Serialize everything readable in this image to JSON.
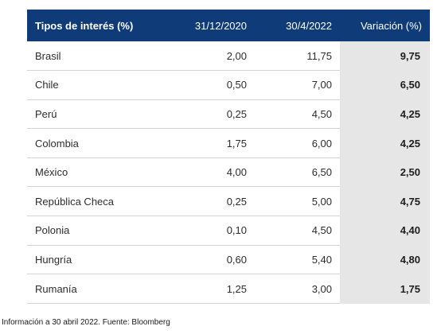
{
  "table": {
    "headers": [
      "Tipos de interés (%)",
      "31/12/2020",
      "30/4/2022",
      "Variación (%)"
    ],
    "rows": [
      {
        "country": "Brasil",
        "v2020": "2,00",
        "v2022": "11,75",
        "change": "9,75"
      },
      {
        "country": "Chile",
        "v2020": "0,50",
        "v2022": "7,00",
        "change": "6,50"
      },
      {
        "country": "Perú",
        "v2020": "0,25",
        "v2022": "4,50",
        "change": "4,25"
      },
      {
        "country": "Colombia",
        "v2020": "1,75",
        "v2022": "6,00",
        "change": "4,25"
      },
      {
        "country": "México",
        "v2020": "4,00",
        "v2022": "6,50",
        "change": "2,50"
      },
      {
        "country": "República Checa",
        "v2020": "0,25",
        "v2022": "5,00",
        "change": "4,75"
      },
      {
        "country": "Polonia",
        "v2020": "0,10",
        "v2022": "4,50",
        "change": "4,40"
      },
      {
        "country": "Hungría",
        "v2020": "0,60",
        "v2022": "5,40",
        "change": "4,80"
      },
      {
        "country": "Rumanía",
        "v2020": "1,25",
        "v2022": "3,00",
        "change": "1,75"
      }
    ]
  },
  "colors": {
    "header_bg": "#0f3c78",
    "header_text": "#ffffff",
    "variation_bg": "#e6e6e6"
  },
  "footnote": "Información a 30 abril 2022. Fuente: Bloomberg"
}
